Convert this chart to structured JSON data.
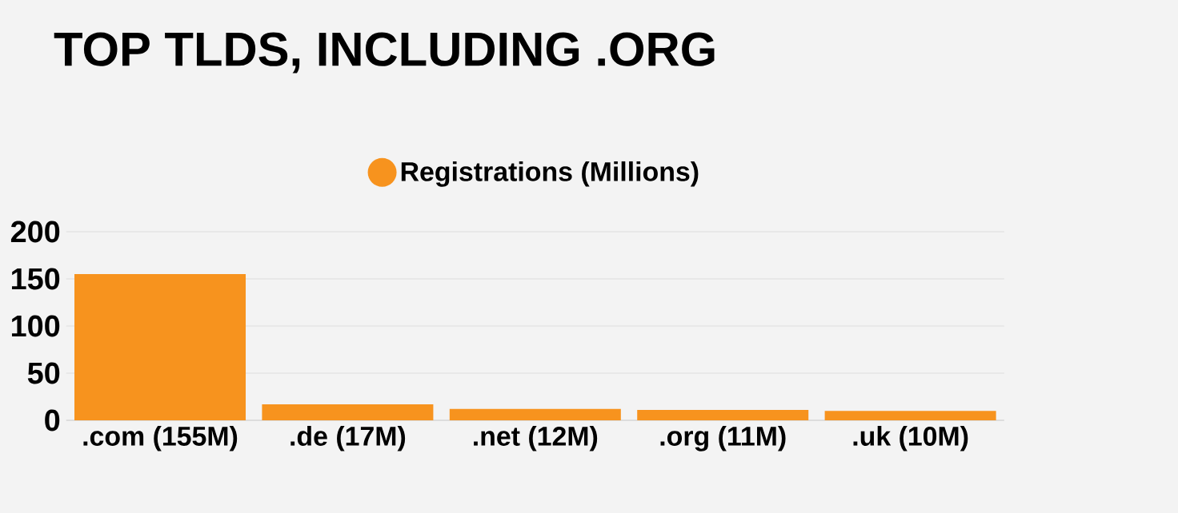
{
  "chart_data": {
    "type": "bar",
    "title": "TOP TLDS, INCLUDING .ORG",
    "categories": [
      ".com (155M)",
      ".de (17M)",
      ".net (12M)",
      ".org (11M)",
      ".uk (10M)"
    ],
    "series": [
      {
        "name": "Registrations (Millions)",
        "color": "#f7931e",
        "values": [
          155,
          17,
          12,
          11,
          10
        ]
      }
    ],
    "ylim": [
      0,
      200
    ],
    "yticks": [
      0,
      50,
      100,
      150,
      200
    ],
    "grid": "y",
    "legend": "top"
  }
}
